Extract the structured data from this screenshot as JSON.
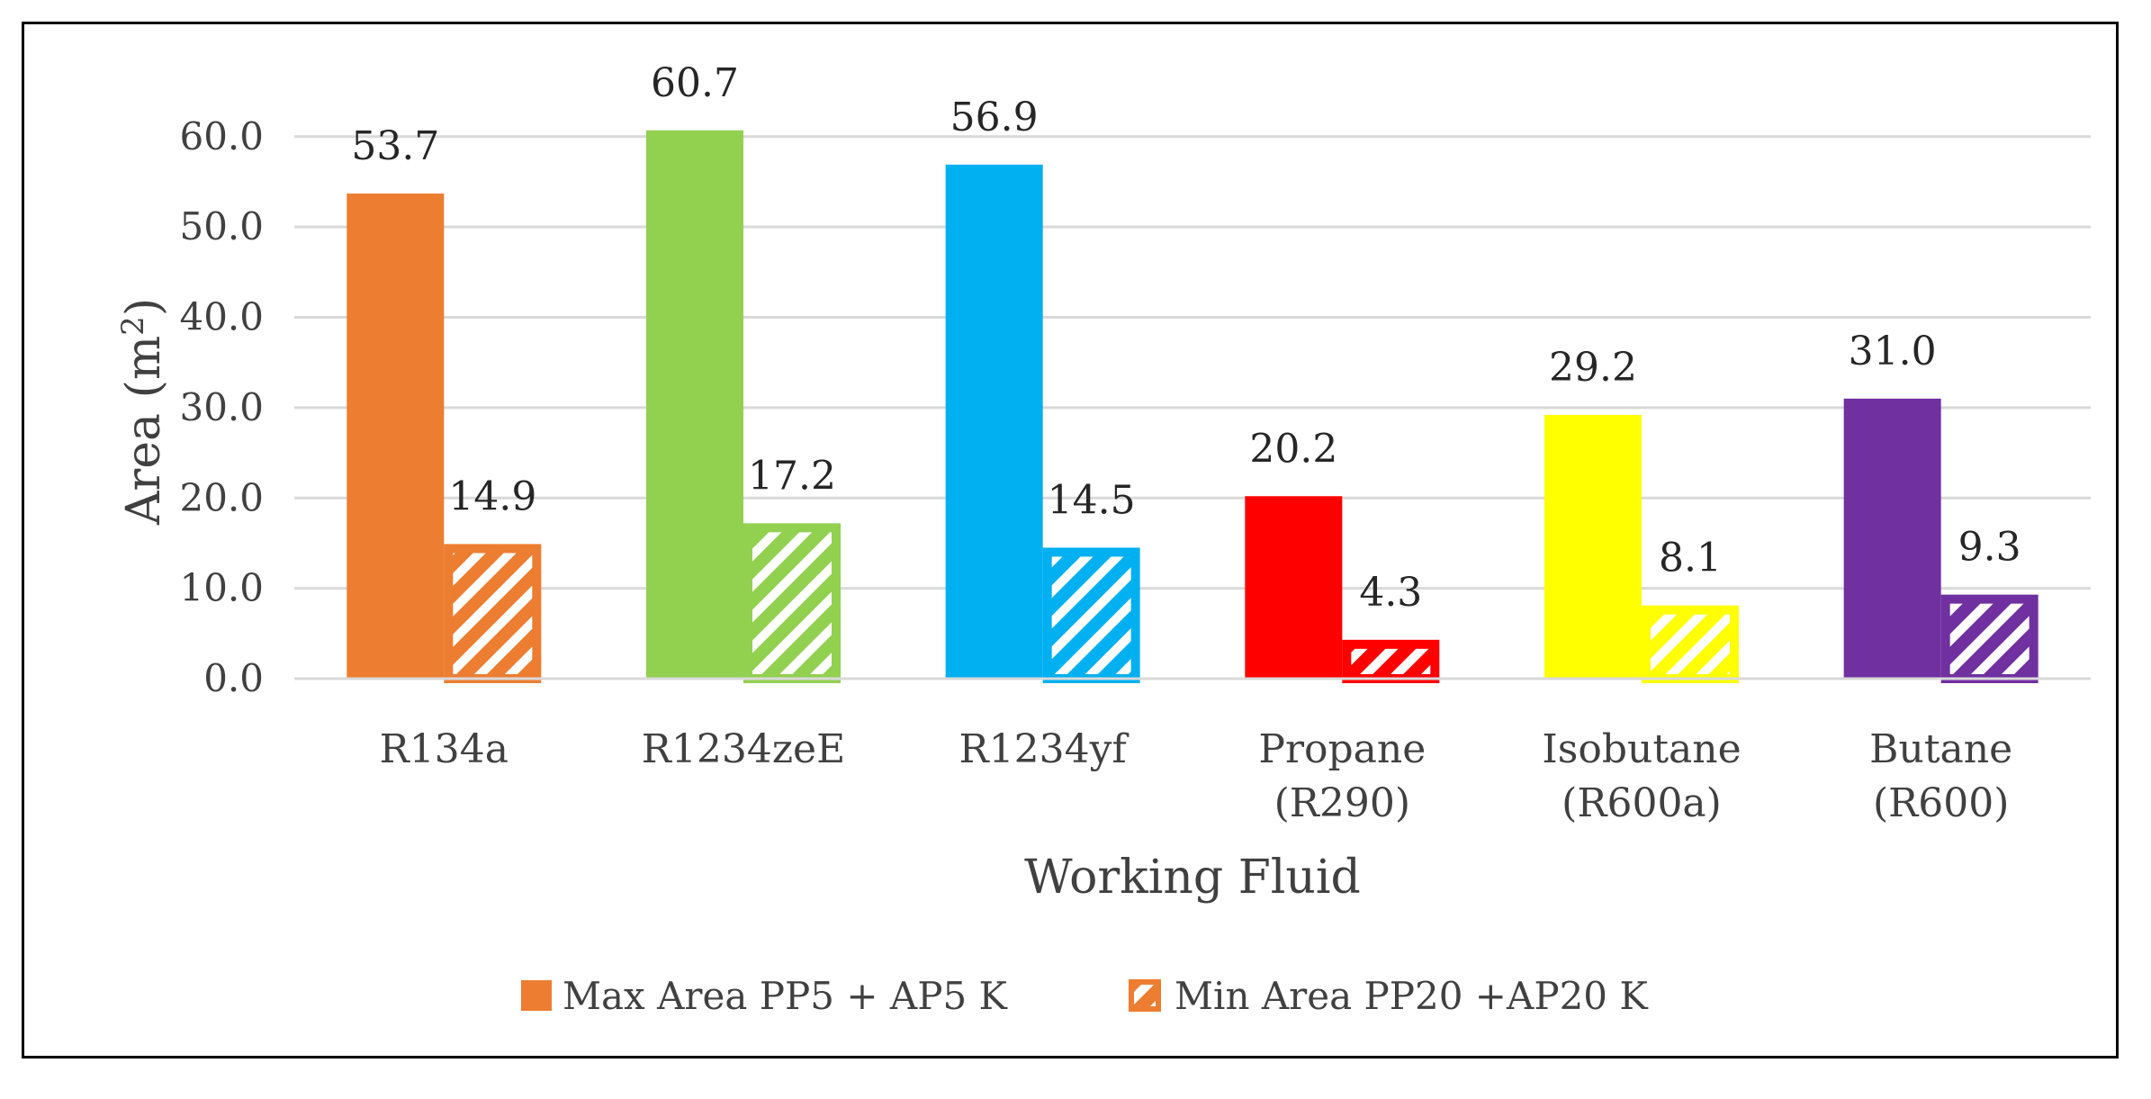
{
  "chart_data": {
    "type": "bar",
    "title": "",
    "xlabel": "Working Fluid",
    "ylabel": "Area (m2)",
    "ylabel_parts": {
      "main": "Area (m",
      "sup": "2",
      "close": ")"
    },
    "ylim": [
      0,
      60
    ],
    "yticks": [
      0,
      10,
      20,
      30,
      40,
      50,
      60
    ],
    "ytick_labels": [
      "0.0",
      "10.0",
      "20.0",
      "30.0",
      "40.0",
      "50.0",
      "60.0"
    ],
    "grid": true,
    "legend_position": "bottom",
    "categories": [
      [
        "R134a"
      ],
      [
        "R1234zeE"
      ],
      [
        "R1234yf"
      ],
      [
        "Propane",
        "(R290)"
      ],
      [
        "Isobutane",
        "(R600a)"
      ],
      [
        "Butane",
        "(R600)"
      ]
    ],
    "colors": [
      "#ED7D31",
      "#92D050",
      "#00B0F0",
      "#FF0000",
      "#FFFF00",
      "#7030A0"
    ],
    "series": [
      {
        "name": "Max Area PP5 + AP5 K",
        "values": [
          53.7,
          60.7,
          56.9,
          20.2,
          29.2,
          31.0
        ],
        "labels": [
          "53.7",
          "60.7",
          "56.9",
          "20.2",
          "29.2",
          "31.0"
        ],
        "pattern": "solid"
      },
      {
        "name": "Min Area PP20 +AP20 K",
        "values": [
          14.9,
          17.2,
          14.5,
          4.3,
          8.1,
          9.3
        ],
        "labels": [
          "14.9",
          "17.2",
          "14.5",
          "4.3",
          "8.1",
          "9.3"
        ],
        "pattern": "diagonal-hatch"
      }
    ]
  }
}
